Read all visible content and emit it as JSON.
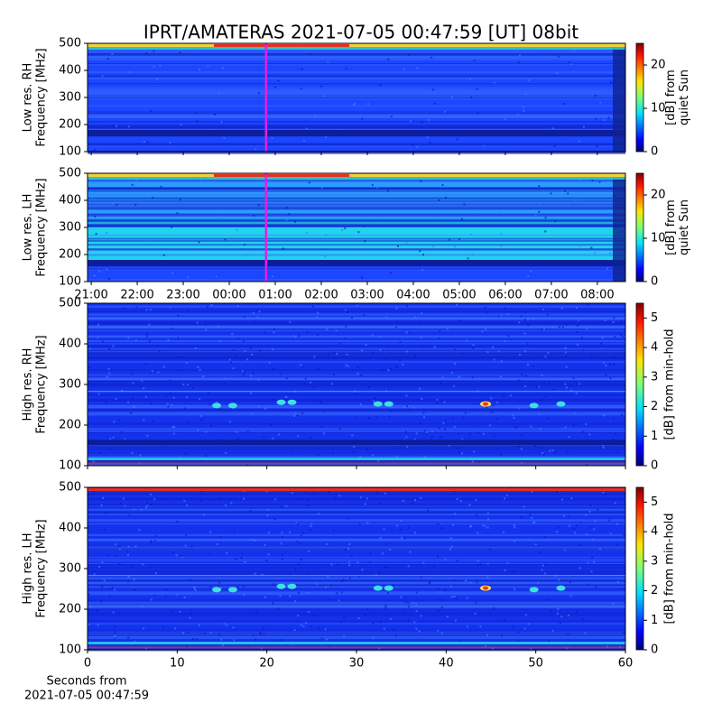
{
  "title": "IPRT/AMATERAS 2021-07-05 00:47:59 [UT]   08bit",
  "chart_data": [
    {
      "type": "spectrogram",
      "ylabel": [
        "Low res. RH",
        "Frequency [MHz]"
      ],
      "ylim": [
        100,
        500
      ],
      "yticks": [
        100,
        200,
        300,
        400,
        500
      ],
      "xlim": [
        20.92,
        32.61
      ],
      "marker_x": 24.8,
      "marker_color": "#e020e0",
      "colorbar": {
        "label": [
          "[dB] from",
          "quiet Sun"
        ],
        "lim": [
          0,
          25
        ],
        "ticks": [
          0,
          10,
          20
        ]
      }
    },
    {
      "type": "spectrogram",
      "ylabel": [
        "Low res. LH",
        "Frequency [MHz]"
      ],
      "ylim": [
        100,
        500
      ],
      "yticks": [
        100,
        200,
        300,
        400,
        500
      ],
      "xlim": [
        20.92,
        32.61
      ],
      "marker_x": 24.8,
      "marker_color": "#e020e0",
      "xticks": [
        {
          "value": 21,
          "label": "21:00"
        },
        {
          "value": 22,
          "label": "22:00"
        },
        {
          "value": 23,
          "label": "23:00"
        },
        {
          "value": 24,
          "label": "00:00"
        },
        {
          "value": 25,
          "label": "01:00"
        },
        {
          "value": 26,
          "label": "02:00"
        },
        {
          "value": 27,
          "label": "03:00"
        },
        {
          "value": 28,
          "label": "04:00"
        },
        {
          "value": 29,
          "label": "05:00"
        },
        {
          "value": 30,
          "label": "06:00"
        },
        {
          "value": 31,
          "label": "07:00"
        },
        {
          "value": 32,
          "label": "08:00"
        }
      ],
      "colorbar": {
        "label": [
          "[dB] from",
          "quiet Sun"
        ],
        "lim": [
          0,
          25
        ],
        "ticks": [
          0,
          10,
          20
        ]
      }
    },
    {
      "type": "spectrogram",
      "ylabel": [
        "High res. RH",
        "Frequency [MHz]"
      ],
      "ylim": [
        100,
        500
      ],
      "yticks": [
        100,
        200,
        300,
        400,
        500
      ],
      "xlim": [
        0,
        60
      ],
      "colorbar": {
        "label": [
          "[dB] from min-hold"
        ],
        "lim": [
          0,
          5.5
        ],
        "ticks": [
          0,
          1,
          2,
          3,
          4,
          5
        ]
      }
    },
    {
      "type": "spectrogram",
      "ylabel": [
        "High res. LH",
        "Frequency [MHz]"
      ],
      "ylim": [
        100,
        500
      ],
      "yticks": [
        100,
        200,
        300,
        400,
        500
      ],
      "xlim": [
        0,
        60
      ],
      "xticks": [
        0,
        10,
        20,
        30,
        40,
        50,
        60
      ],
      "xlabel": [
        "Seconds from",
        "2021-07-05 00:47:59"
      ],
      "colorbar": {
        "label": [
          "[dB] from min-hold"
        ],
        "lim": [
          0,
          5.5
        ],
        "ticks": [
          0,
          1,
          2,
          3,
          4,
          5
        ]
      }
    }
  ]
}
